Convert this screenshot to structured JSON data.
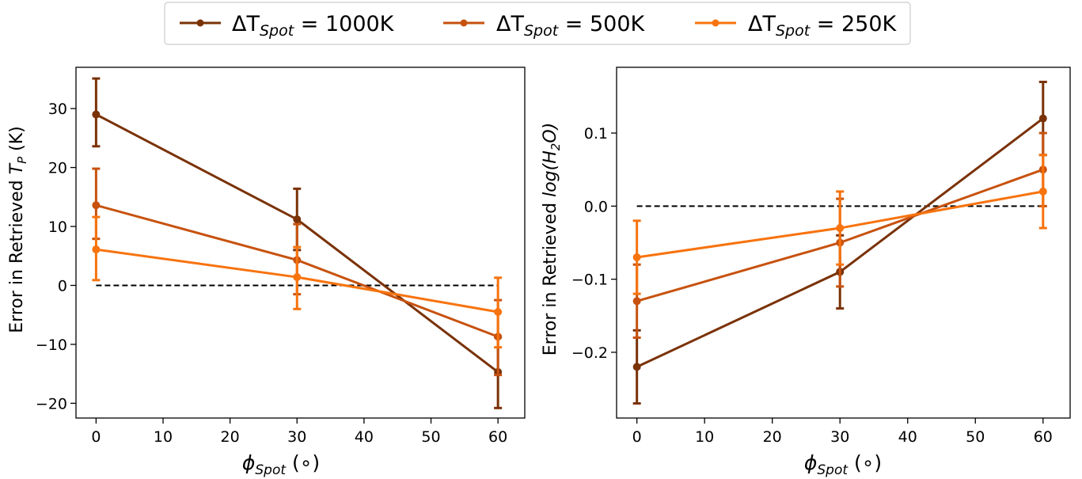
{
  "colors": {
    "dT1000": "#7a3207",
    "dT500": "#c7520f",
    "dT250": "#f7730e",
    "zero_line": "#000000"
  },
  "legend": {
    "position": "top-center",
    "items": [
      {
        "prefix": "ΔT",
        "sub": "Spot",
        "suffix": " = 1000K",
        "color": "#7a3207"
      },
      {
        "prefix": "ΔT",
        "sub": "Spot",
        "suffix": " = 500K",
        "color": "#c7520f"
      },
      {
        "prefix": "ΔT",
        "sub": "Spot",
        "suffix": " = 250K",
        "color": "#f7730e"
      }
    ]
  },
  "chart_data": [
    {
      "type": "line",
      "panel": "left",
      "xlabel": {
        "main": "ϕ",
        "sub": "Spot",
        "unit": " (∘)"
      },
      "ylabel": {
        "prefix": "Error in Retrieved ",
        "var": "T",
        "sub": "P",
        "unit": " (K)"
      },
      "xlim": [
        -3,
        64
      ],
      "ylim": [
        -22.5,
        37
      ],
      "xticks": [
        0,
        10,
        20,
        30,
        40,
        50,
        60
      ],
      "yticks": [
        30,
        20,
        10,
        0,
        -10,
        -20
      ],
      "ytick_labels": [
        "30",
        "20",
        "10",
        "0",
        "−10",
        "−20"
      ],
      "x": [
        0,
        30,
        60
      ],
      "zero_line": true,
      "series": [
        {
          "name": "ΔT_Spot = 1000K",
          "color": "#7a3207",
          "values": [
            29,
            11.2,
            -14.7
          ],
          "err_low": [
            23.6,
            6.0,
            -20.8
          ],
          "err_high": [
            35.1,
            16.4,
            -8.8
          ]
        },
        {
          "name": "ΔT_Spot = 500K",
          "color": "#c7520f",
          "values": [
            13.6,
            4.3,
            -8.7
          ],
          "err_low": [
            7.9,
            -1.5,
            -15.2
          ],
          "err_high": [
            19.8,
            10.4,
            -2.5
          ]
        },
        {
          "name": "ΔT_Spot = 250K",
          "color": "#f7730e",
          "values": [
            6.1,
            1.4,
            -4.5
          ],
          "err_low": [
            0.9,
            -4.0,
            -10.5
          ],
          "err_high": [
            11.6,
            6.5,
            1.3
          ]
        }
      ]
    },
    {
      "type": "line",
      "panel": "right",
      "xlabel": {
        "main": "ϕ",
        "sub": "Spot",
        "unit": " (∘)"
      },
      "ylabel": {
        "prefix": "Error in Retrieved ",
        "var": "log(H",
        "sub": "2",
        "suffix": "O)"
      },
      "xlim": [
        -3,
        64
      ],
      "ylim": [
        -0.29,
        0.19
      ],
      "xticks": [
        0,
        10,
        20,
        30,
        40,
        50,
        60
      ],
      "yticks": [
        0.1,
        0.0,
        -0.1,
        -0.2
      ],
      "ytick_labels": [
        "0.1",
        "0.0",
        "−0.1",
        "−0.2"
      ],
      "x": [
        0,
        30,
        60
      ],
      "zero_line": true,
      "series": [
        {
          "name": "ΔT_Spot = 1000K",
          "color": "#7a3207",
          "values": [
            -0.22,
            -0.09,
            0.12
          ],
          "err_low": [
            -0.27,
            -0.14,
            0.07
          ],
          "err_high": [
            -0.17,
            -0.04,
            0.17
          ]
        },
        {
          "name": "ΔT_Spot = 500K",
          "color": "#c7520f",
          "values": [
            -0.13,
            -0.05,
            0.05
          ],
          "err_low": [
            -0.18,
            -0.11,
            0.0
          ],
          "err_high": [
            -0.08,
            0.01,
            0.1
          ]
        },
        {
          "name": "ΔT_Spot = 250K",
          "color": "#f7730e",
          "values": [
            -0.07,
            -0.03,
            0.02
          ],
          "err_low": [
            -0.12,
            -0.08,
            -0.03
          ],
          "err_high": [
            -0.02,
            0.02,
            0.07
          ]
        }
      ]
    }
  ]
}
